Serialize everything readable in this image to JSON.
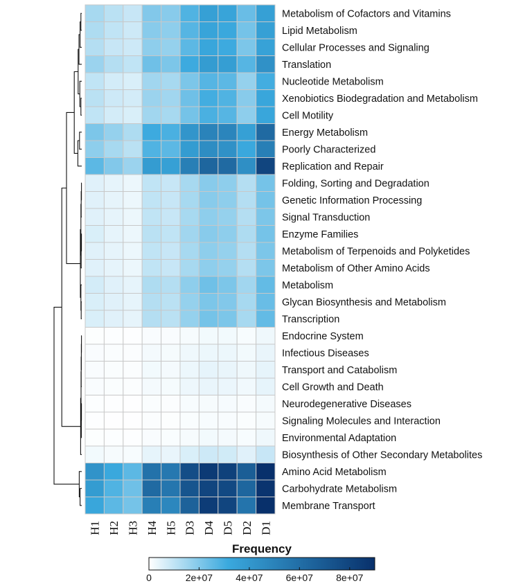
{
  "chart_data": {
    "type": "heatmap",
    "columns": [
      "H1",
      "H2",
      "H3",
      "H4",
      "H5",
      "D3",
      "D4",
      "D5",
      "D2",
      "D1"
    ],
    "rows": [
      "Metabolism of Cofactors and Vitamins",
      "Lipid Metabolism",
      "Cellular Processes and Signaling",
      "Translation",
      "Nucleotide Metabolism",
      "Xenobiotics Biodegradation and Metabolism",
      "Cell Motility",
      "Energy Metabolism",
      "Poorly Characterized",
      "Replication and Repair",
      "Folding, Sorting and Degradation",
      "Genetic Information Processing",
      "Signal Transduction",
      "Enzyme Families",
      "Metabolism of Terpenoids and Polyketides",
      "Metabolism of Other Amino Acids",
      "Metabolism",
      "Glycan Biosynthesis and Metabolism",
      "Transcription",
      "Endocrine System",
      "Infectious Diseases",
      "Transport and Catabolism",
      "Cell Growth and Death",
      "Neurodegenerative Diseases",
      "Signaling Molecules and Interaction",
      "Environmental Adaptation",
      "Biosynthesis of Other Secondary Metabolites",
      "Amino Acid Metabolism",
      "Carbohydrate Metabolism",
      "Membrane Transport"
    ],
    "values": [
      [
        14000000,
        11000000,
        9000000,
        20000000,
        19000000,
        28000000,
        36000000,
        34000000,
        24000000,
        36000000
      ],
      [
        13000000,
        10000000,
        8000000,
        19000000,
        18000000,
        27000000,
        34000000,
        32000000,
        22000000,
        36000000
      ],
      [
        12000000,
        9000000,
        8000000,
        18000000,
        17000000,
        26000000,
        33000000,
        31000000,
        21000000,
        35000000
      ],
      [
        16000000,
        12000000,
        10000000,
        23000000,
        21000000,
        31000000,
        38000000,
        37000000,
        27000000,
        43000000
      ],
      [
        10000000,
        7000000,
        6000000,
        15000000,
        14000000,
        21000000,
        27000000,
        26000000,
        17000000,
        30000000
      ],
      [
        11000000,
        8000000,
        7000000,
        16000000,
        15000000,
        23000000,
        30000000,
        28000000,
        19000000,
        33000000
      ],
      [
        10000000,
        7000000,
        6000000,
        15000000,
        14000000,
        22000000,
        29000000,
        27000000,
        18000000,
        33000000
      ],
      [
        21000000,
        17000000,
        13000000,
        31000000,
        29000000,
        41000000,
        50000000,
        49000000,
        36000000,
        62000000
      ],
      [
        18000000,
        14000000,
        11000000,
        28000000,
        26000000,
        38000000,
        45000000,
        43000000,
        32000000,
        52000000
      ],
      [
        26000000,
        20000000,
        16000000,
        38000000,
        36000000,
        52000000,
        64000000,
        62000000,
        44000000,
        80000000
      ],
      [
        5000000,
        4000000,
        3000000,
        10000000,
        9000000,
        14000000,
        19000000,
        18000000,
        12000000,
        22000000
      ],
      [
        5000000,
        4000000,
        3000000,
        10000000,
        9000000,
        14000000,
        19000000,
        18000000,
        12000000,
        22000000
      ],
      [
        5000000,
        4000000,
        3000000,
        10000000,
        9000000,
        14000000,
        18000000,
        17000000,
        12000000,
        21000000
      ],
      [
        6000000,
        4000000,
        3000000,
        11000000,
        10000000,
        15000000,
        19000000,
        18000000,
        13000000,
        22000000
      ],
      [
        5000000,
        4000000,
        3000000,
        10000000,
        9000000,
        14000000,
        18000000,
        17000000,
        12000000,
        21000000
      ],
      [
        5000000,
        4000000,
        3000000,
        10000000,
        9000000,
        14000000,
        18000000,
        17000000,
        12000000,
        21000000
      ],
      [
        7000000,
        5000000,
        4000000,
        13000000,
        12000000,
        18000000,
        23000000,
        21000000,
        15000000,
        25000000
      ],
      [
        6000000,
        5000000,
        4000000,
        12000000,
        11000000,
        17000000,
        21000000,
        20000000,
        14000000,
        24000000
      ],
      [
        6000000,
        5000000,
        4000000,
        12000000,
        11000000,
        17000000,
        22000000,
        21000000,
        14000000,
        25000000
      ],
      [
        500000,
        400000,
        300000,
        1000000,
        1000000,
        1500000,
        2000000,
        2000000,
        1200000,
        2500000
      ],
      [
        1000000,
        800000,
        600000,
        1800000,
        1600000,
        2500000,
        3000000,
        3000000,
        2000000,
        3500000
      ],
      [
        1000000,
        800000,
        600000,
        2000000,
        1800000,
        3000000,
        4000000,
        3500000,
        2500000,
        4000000
      ],
      [
        1000000,
        800000,
        600000,
        1800000,
        1600000,
        2800000,
        3500000,
        3200000,
        2200000,
        4000000
      ],
      [
        400000,
        300000,
        200000,
        800000,
        700000,
        1200000,
        1500000,
        1400000,
        1000000,
        1800000
      ],
      [
        300000,
        200000,
        200000,
        600000,
        500000,
        900000,
        1200000,
        1100000,
        800000,
        1500000
      ],
      [
        500000,
        400000,
        300000,
        1000000,
        900000,
        1500000,
        2000000,
        1800000,
        1200000,
        2500000
      ],
      [
        2000000,
        1500000,
        1200000,
        4000000,
        3500000,
        6000000,
        8000000,
        7500000,
        5000000,
        9000000
      ],
      [
        42000000,
        32000000,
        26000000,
        58000000,
        55000000,
        76000000,
        85000000,
        82000000,
        68000000,
        90000000
      ],
      [
        38000000,
        28000000,
        23000000,
        62000000,
        56000000,
        72000000,
        80000000,
        78000000,
        64000000,
        88000000
      ],
      [
        33000000,
        26000000,
        22000000,
        52000000,
        48000000,
        66000000,
        84000000,
        80000000,
        57000000,
        90000000
      ]
    ],
    "color_scale": {
      "low": "#ffffff",
      "mid": "#3aa9de",
      "high": "#08306b",
      "min": 0,
      "max": 90000000
    },
    "legend": {
      "title": "Frequency",
      "ticks": [
        0,
        20000000,
        40000000,
        60000000,
        80000000
      ],
      "tick_labels": [
        "0",
        "2e+07",
        "4e+07",
        "6e+07",
        "8e+07"
      ],
      "placement": "bottom"
    },
    "grid": true,
    "row_dendrogram": true
  }
}
